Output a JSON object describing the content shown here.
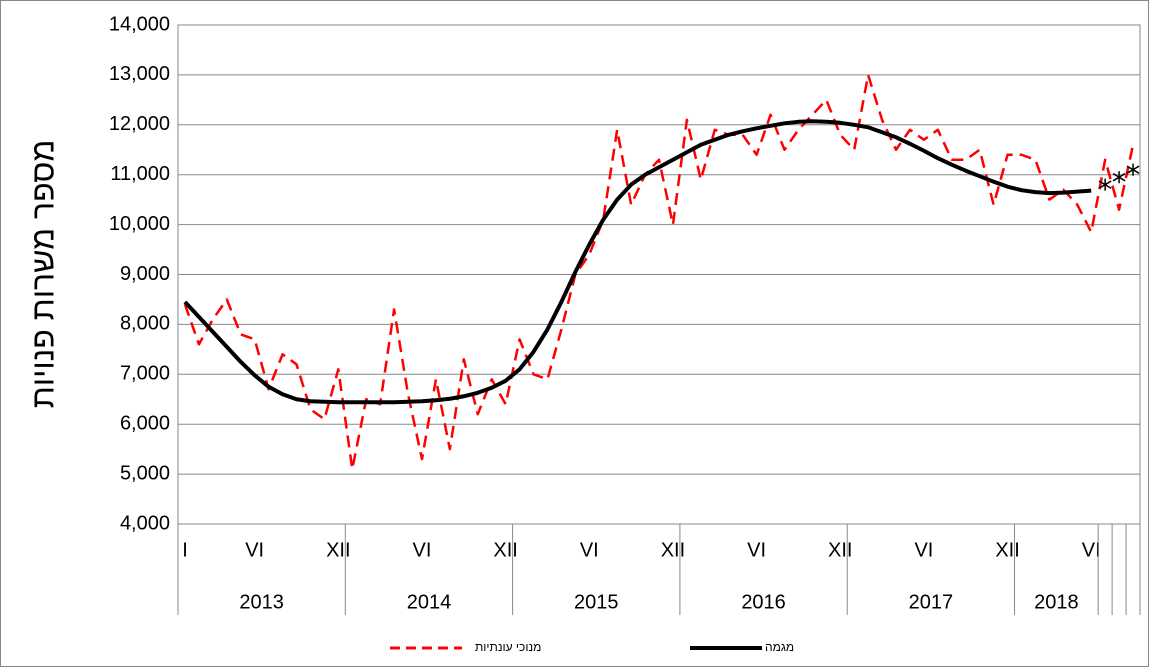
{
  "chart_data": {
    "type": "line",
    "y_axis_label": "מספר משרות  פנויות",
    "categories": [
      "I",
      null,
      null,
      null,
      null,
      "VI",
      null,
      null,
      null,
      null,
      null,
      "XII",
      null,
      null,
      null,
      null,
      null,
      "VI",
      null,
      null,
      null,
      null,
      null,
      "XII",
      null,
      null,
      null,
      null,
      null,
      "VI",
      null,
      null,
      null,
      null,
      null,
      "XII",
      null,
      null,
      null,
      null,
      null,
      "VI",
      null,
      null,
      null,
      null,
      null,
      "XII",
      null,
      null,
      null,
      null,
      null,
      "VI",
      null,
      null,
      null,
      null,
      null,
      "XII",
      null,
      null,
      null,
      null,
      null,
      "VI",
      null,
      null,
      null
    ],
    "year_groups": [
      {
        "label": "2013",
        "size": 12
      },
      {
        "label": "2014",
        "size": 12
      },
      {
        "label": "2015",
        "size": 12
      },
      {
        "label": "2016",
        "size": 12
      },
      {
        "label": "2017",
        "size": 12
      },
      {
        "label": "2018",
        "size": 6
      },
      {
        "label": null,
        "size": 1
      },
      {
        "label": null,
        "size": 1
      },
      {
        "label": null,
        "size": 1
      }
    ],
    "series": [
      {
        "name": "מנוכי עונתיות",
        "color": "#ff0000",
        "dashed": true,
        "values": [
          8400,
          7600,
          8100,
          8500,
          7800,
          7700,
          6700,
          7400,
          7200,
          6300,
          6100,
          7100,
          5100,
          6500,
          6400,
          8300,
          6600,
          5300,
          6900,
          5500,
          7300,
          6200,
          6900,
          6400,
          7700,
          7000,
          6900,
          7900,
          9000,
          9400,
          10100,
          11900,
          10400,
          11000,
          11300,
          10000,
          12100,
          10900,
          11900,
          11800,
          11800,
          11400,
          12200,
          11500,
          11900,
          12200,
          12500,
          11800,
          11500,
          13000,
          12100,
          11500,
          11900,
          11700,
          11900,
          11300,
          11300,
          11500,
          10400,
          11400,
          11400,
          11300,
          10500,
          10700,
          10400,
          9850,
          11300,
          10300,
          11600
        ]
      },
      {
        "name": "מגמה",
        "color": "#000000",
        "dashed": false,
        "marker_start": 66,
        "marker": "asterisk",
        "values": [
          8450,
          8150,
          7850,
          7550,
          7250,
          6980,
          6750,
          6600,
          6500,
          6460,
          6450,
          6440,
          6440,
          6440,
          6440,
          6440,
          6450,
          6460,
          6480,
          6510,
          6560,
          6630,
          6730,
          6870,
          7100,
          7450,
          7900,
          8450,
          9050,
          9600,
          10100,
          10500,
          10800,
          11000,
          11150,
          11300,
          11450,
          11600,
          11700,
          11800,
          11870,
          11930,
          11980,
          12030,
          12060,
          12070,
          12060,
          12040,
          12000,
          11950,
          11850,
          11750,
          11620,
          11480,
          11330,
          11200,
          11080,
          10970,
          10860,
          10760,
          10690,
          10650,
          10630,
          10640,
          10660,
          10680,
          10800,
          10950,
          11100
        ]
      }
    ],
    "ylim": [
      4000,
      14000
    ],
    "yticks": [
      {
        "value": 4000,
        "label": "4,000"
      },
      {
        "value": 5000,
        "label": "5,000"
      },
      {
        "value": 6000,
        "label": "6,000"
      },
      {
        "value": 7000,
        "label": "7,000"
      },
      {
        "value": 8000,
        "label": "8,000"
      },
      {
        "value": 9000,
        "label": "9,000"
      },
      {
        "value": 10000,
        "label": "10,000"
      },
      {
        "value": 11000,
        "label": "11,000"
      },
      {
        "value": 12000,
        "label": "12,000"
      },
      {
        "value": 13000,
        "label": "13,000"
      },
      {
        "value": 14000,
        "label": "14,000"
      }
    ],
    "grid": true
  }
}
